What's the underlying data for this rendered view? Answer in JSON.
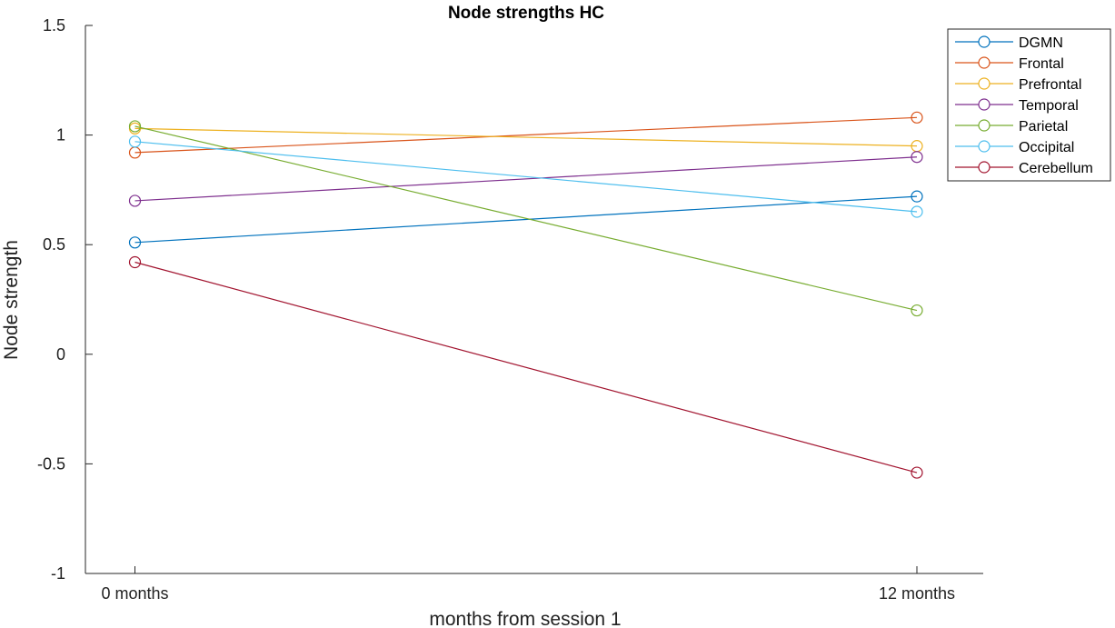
{
  "chart_data": {
    "type": "line",
    "title": "Node strengths HC",
    "xlabel": "months from session 1",
    "ylabel": "Node strength",
    "categories": [
      "0 months",
      "12 months"
    ],
    "ylim": [
      -1,
      1.5
    ],
    "yticks": [
      "-1",
      "-0.5",
      "0",
      "0.5",
      "1",
      "1.5"
    ],
    "yticks_values": [
      -1,
      -0.5,
      0,
      0.5,
      1,
      1.5
    ],
    "grid": false,
    "legend_position": "top-right, outside",
    "series": [
      {
        "name": "DGMN",
        "values": [
          0.51,
          0.72
        ],
        "color": "#0072BD"
      },
      {
        "name": "Frontal",
        "values": [
          0.92,
          1.08
        ],
        "color": "#D95319"
      },
      {
        "name": "Prefrontal",
        "values": [
          1.03,
          0.95
        ],
        "color": "#EDB120"
      },
      {
        "name": "Temporal",
        "values": [
          0.7,
          0.9
        ],
        "color": "#7E2F8E"
      },
      {
        "name": "Parietal",
        "values": [
          1.04,
          0.2
        ],
        "color": "#77AC30"
      },
      {
        "name": "Occipital",
        "values": [
          0.97,
          0.65
        ],
        "color": "#4DBEEE"
      },
      {
        "name": "Cerebellum",
        "values": [
          0.42,
          -0.54
        ],
        "color": "#A2142F"
      }
    ]
  }
}
